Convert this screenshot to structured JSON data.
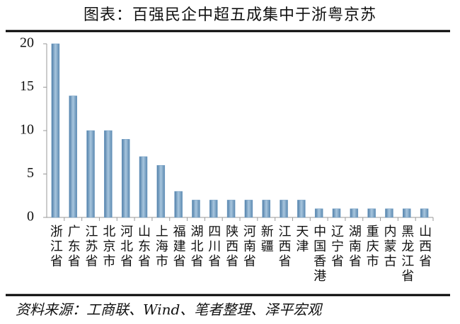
{
  "chart_data": {
    "type": "bar",
    "title": "图表：百强民企中超五成集中于浙粤京苏",
    "source": "资料来源：工商联、Wind、笔者整理、泽平宏观",
    "categories": [
      "浙江省",
      "广东省",
      "江苏省",
      "北京市",
      "河北省",
      "山东省",
      "上海市",
      "福建省",
      "湖北省",
      "四川省",
      "陕西省",
      "河南省",
      "新疆",
      "江西省",
      "天津",
      "中国香港",
      "辽宁省",
      "湖南省",
      "重庆市",
      "内蒙古",
      "黑龙江省",
      "山西省"
    ],
    "values": [
      20,
      14,
      10,
      10,
      9,
      7,
      6,
      3,
      2,
      2,
      2,
      2,
      2,
      2,
      2,
      1,
      1,
      1,
      1,
      1,
      1,
      1
    ],
    "color": "#6f9cc2",
    "ylim": [
      0,
      20
    ],
    "yticks": [
      0,
      5,
      10,
      15,
      20
    ],
    "grid": false
  }
}
